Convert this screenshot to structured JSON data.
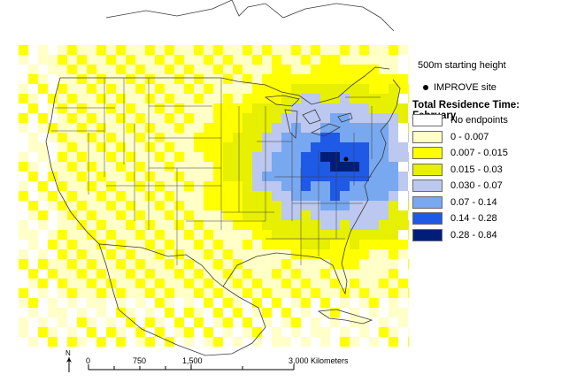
{
  "legend": {
    "starting_height": "500m starting height",
    "site_label": "IMPROVE site",
    "title": "Total Residence Time: February",
    "classes": [
      {
        "label": "No endpoints",
        "color": "#ffffff"
      },
      {
        "label": "0 - 0.007",
        "color": "#ffffc8"
      },
      {
        "label": "0.007 - 0.015",
        "color": "#ffff00"
      },
      {
        "label": "0.015 - 0.03",
        "color": "#e6f000"
      },
      {
        "label": "0.030 - 0.07",
        "color": "#bcc8f0"
      },
      {
        "label": "0.07 - 0.14",
        "color": "#78a8f0"
      },
      {
        "label": "0.14 - 0.28",
        "color": "#1e5ae6"
      },
      {
        "label": "0.28 - 0.84",
        "color": "#001e78"
      }
    ]
  },
  "scalebar": {
    "ticks": [
      "0",
      "750",
      "1,500",
      "3,000 Kilometers"
    ],
    "north": "N"
  },
  "colors": {
    "land_outline": "#3a3a3a",
    "state_lines": "#3a3a3a",
    "water": "#ffffff"
  }
}
